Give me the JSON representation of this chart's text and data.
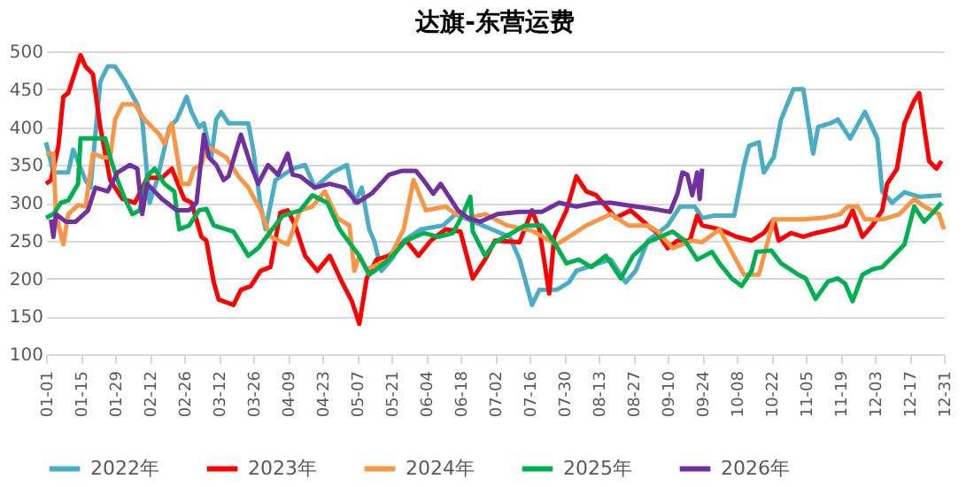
{
  "chart_data": {
    "type": "line",
    "title": "达旗-东营运费",
    "ylim": [
      100,
      500
    ],
    "yticks": [
      100,
      150,
      200,
      250,
      300,
      350,
      400,
      450,
      500
    ],
    "xlim": [
      "--01-01",
      "--12-31"
    ],
    "xticks": [
      {
        "value": "--01-01",
        "label": "01-01"
      },
      {
        "value": "--01-15",
        "label": "01-15"
      },
      {
        "value": "--01-29",
        "label": "01-29"
      },
      {
        "value": "--02-12",
        "label": "02-12"
      },
      {
        "value": "--02-26",
        "label": "02-26"
      },
      {
        "value": "--03-12",
        "label": "03-12"
      },
      {
        "value": "--03-26",
        "label": "03-26"
      },
      {
        "value": "--04-09",
        "label": "04-09"
      },
      {
        "value": "--04-23",
        "label": "04-23"
      },
      {
        "value": "--05-07",
        "label": "05-07"
      },
      {
        "value": "--05-21",
        "label": "05-21"
      },
      {
        "value": "--06-04",
        "label": "06-04"
      },
      {
        "value": "--06-18",
        "label": "06-18"
      },
      {
        "value": "--07-02",
        "label": "07-02"
      },
      {
        "value": "--07-16",
        "label": "07-16"
      },
      {
        "value": "--07-30",
        "label": "07-30"
      },
      {
        "value": "--08-13",
        "label": "08-13"
      },
      {
        "value": "--08-27",
        "label": "08-27"
      },
      {
        "value": "--09-10",
        "label": "09-10"
      },
      {
        "value": "--09-24",
        "label": "09-24"
      },
      {
        "value": "--10-08",
        "label": "10-08"
      },
      {
        "value": "--10-22",
        "label": "10-22"
      },
      {
        "value": "--11-05",
        "label": "11-05"
      },
      {
        "value": "--11-19",
        "label": "11-19"
      },
      {
        "value": "--12-03",
        "label": "12-03"
      },
      {
        "value": "--12-17",
        "label": "12-17"
      },
      {
        "value": "--12-31",
        "label": "12-31"
      }
    ],
    "grid": "y",
    "legend": "bottom",
    "line_style": "solid",
    "marker": "none",
    "series": [
      {
        "name": "2022年",
        "color": "#4bacc6",
        "x": [
          "--01-01",
          "--01-04",
          "--01-10",
          "--01-12",
          "--01-17",
          "--01-19",
          "--01-23",
          "--01-26",
          "--01-29",
          "--02-02",
          "--02-07",
          "--02-09",
          "--02-12",
          "--02-15",
          "--02-20",
          "--02-23",
          "--02-27",
          "--03-01",
          "--03-04",
          "--03-06",
          "--03-09",
          "--03-11",
          "--03-13",
          "--03-16",
          "--03-24",
          "--03-26",
          "--03-29",
          "--03-31",
          "--04-04",
          "--04-11",
          "--04-16",
          "--04-20",
          "--04-27",
          "--05-03",
          "--05-06",
          "--05-09",
          "--05-12",
          "--05-14",
          "--05-17",
          "--05-21",
          "--05-26",
          "--06-02",
          "--06-11",
          "--06-16",
          "--06-27",
          "--07-08",
          "--07-12",
          "--07-17",
          "--07-20",
          "--07-27",
          "--08-01",
          "--08-04",
          "--08-13",
          "--08-18",
          "--08-24",
          "--08-28",
          "--09-02",
          "--09-10",
          "--09-15",
          "--09-21",
          "--09-24",
          "--09-29",
          "--10-07",
          "--10-11",
          "--10-13",
          "--10-17",
          "--10-19",
          "--10-23",
          "--10-26",
          "--10-31",
          "--11-04",
          "--11-08",
          "--11-10",
          "--11-15",
          "--11-18",
          "--11-23",
          "--11-29",
          "--12-04",
          "--12-06",
          "--12-10",
          "--12-15",
          "--12-21",
          "--12-30"
        ],
        "values": [
          380,
          340,
          340,
          370,
          330,
          320,
          460,
          480,
          480,
          460,
          430,
          410,
          300,
          330,
          400,
          410,
          440,
          420,
          400,
          405,
          360,
          410,
          420,
          405,
          405,
          370,
          295,
          265,
          330,
          345,
          350,
          320,
          340,
          350,
          300,
          320,
          265,
          250,
          210,
          225,
          250,
          265,
          270,
          285,
          270,
          255,
          225,
          165,
          185,
          185,
          195,
          210,
          220,
          225,
          195,
          210,
          250,
          270,
          295,
          295,
          280,
          283,
          283,
          350,
          375,
          380,
          340,
          360,
          410,
          450,
          450,
          365,
          400,
          405,
          410,
          385,
          420,
          385,
          315,
          300,
          314,
          308,
          310
        ]
      },
      {
        "name": "2023年",
        "color": "#ff0000",
        "x": [
          "--01-01",
          "--01-03",
          "--01-06",
          "--01-08",
          "--01-10",
          "--01-13",
          "--01-15",
          "--01-17",
          "--01-20",
          "--01-23",
          "--01-27",
          "--02-01",
          "--02-06",
          "--02-11",
          "--02-17",
          "--02-21",
          "--02-26",
          "--03-01",
          "--03-05",
          "--03-07",
          "--03-10",
          "--03-12",
          "--03-18",
          "--03-21",
          "--03-25",
          "--03-29",
          "--04-02",
          "--04-06",
          "--04-09",
          "--04-12",
          "--04-16",
          "--04-21",
          "--04-26",
          "--05-01",
          "--05-05",
          "--05-08",
          "--05-11",
          "--05-15",
          "--05-20",
          "--05-27",
          "--06-01",
          "--06-06",
          "--06-12",
          "--06-18",
          "--06-23",
          "--06-28",
          "--07-02",
          "--07-12",
          "--07-17",
          "--07-20",
          "--07-24",
          "--07-26",
          "--07-31",
          "--08-04",
          "--08-08",
          "--08-12",
          "--08-20",
          "--08-26",
          "--09-02",
          "--09-06",
          "--09-10",
          "--09-14",
          "--09-19",
          "--09-22",
          "--09-24",
          "--10-01",
          "--10-08",
          "--10-14",
          "--10-19",
          "--10-23",
          "--10-25",
          "--10-30",
          "--11-04",
          "--11-09",
          "--11-16",
          "--11-21",
          "--11-24",
          "--11-28",
          "--12-02",
          "--12-06",
          "--12-08",
          "--12-12",
          "--12-15",
          "--12-19",
          "--12-21",
          "--12-25",
          "--12-28",
          "--12-30"
        ],
        "values": [
          325,
          330,
          375,
          440,
          445,
          475,
          495,
          480,
          470,
          400,
          330,
          305,
          300,
          333,
          333,
          345,
          305,
          300,
          255,
          250,
          195,
          172,
          165,
          185,
          190,
          210,
          215,
          287,
          290,
          270,
          230,
          210,
          230,
          195,
          170,
          140,
          200,
          225,
          230,
          250,
          230,
          250,
          265,
          262,
          200,
          225,
          250,
          248,
          290,
          265,
          180,
          255,
          290,
          335,
          315,
          310,
          280,
          290,
          270,
          260,
          240,
          250,
          250,
          283,
          270,
          265,
          255,
          250,
          260,
          278,
          250,
          260,
          255,
          260,
          265,
          270,
          290,
          255,
          270,
          290,
          325,
          345,
          405,
          435,
          445,
          355,
          345,
          355
        ]
      },
      {
        "name": "2024年",
        "color": "#f79646",
        "x": [
          "--01-01",
          "--01-04",
          "--01-05",
          "--01-08",
          "--01-10",
          "--01-14",
          "--01-17",
          "--01-20",
          "--01-24",
          "--01-27",
          "--01-29",
          "--02-01",
          "--02-06",
          "--02-10",
          "--02-16",
          "--02-18",
          "--02-21",
          "--02-25",
          "--02-28",
          "--03-02",
          "--03-05",
          "--03-07",
          "--03-11",
          "--03-15",
          "--03-20",
          "--03-24",
          "--03-29",
          "--04-02",
          "--04-09",
          "--04-14",
          "--04-19",
          "--04-24",
          "--04-29",
          "--05-04",
          "--05-06",
          "--05-08",
          "--05-11",
          "--05-20",
          "--05-26",
          "--05-30",
          "--06-04",
          "--06-12",
          "--06-16",
          "--06-21",
          "--06-28",
          "--07-07",
          "--07-17",
          "--07-27",
          "--08-01",
          "--08-08",
          "--08-18",
          "--08-25",
          "--09-02",
          "--09-06",
          "--09-12",
          "--09-20",
          "--09-24",
          "--10-01",
          "--10-06",
          "--10-11",
          "--10-17",
          "--10-23",
          "--10-30",
          "--11-04",
          "--11-12",
          "--11-19",
          "--11-22",
          "--11-26",
          "--11-29",
          "--12-06",
          "--12-13",
          "--12-19",
          "--12-23",
          "--12-29",
          "--12-31"
        ],
        "values": [
          365,
          365,
          285,
          245,
          285,
          297,
          295,
          365,
          360,
          360,
          410,
          430,
          430,
          410,
          390,
          378,
          405,
          325,
          325,
          345,
          350,
          375,
          368,
          360,
          335,
          320,
          290,
          255,
          245,
          290,
          295,
          315,
          280,
          270,
          210,
          230,
          212,
          225,
          265,
          330,
          290,
          295,
          285,
          280,
          285,
          270,
          263,
          245,
          255,
          270,
          285,
          270,
          270,
          262,
          240,
          250,
          248,
          265,
          235,
          205,
          205,
          278,
          278,
          278,
          280,
          285,
          295,
          295,
          278,
          278,
          285,
          305,
          295,
          285,
          265
        ]
      },
      {
        "name": "2025年",
        "color": "#00b050",
        "x": [
          "--01-01",
          "--01-04",
          "--01-07",
          "--01-10",
          "--01-14",
          "--01-15",
          "--01-25",
          "--01-27",
          "--01-30",
          "--02-02",
          "--02-05",
          "--02-08",
          "--02-11",
          "--02-14",
          "--02-18",
          "--02-22",
          "--02-24",
          "--02-28",
          "--03-04",
          "--03-07",
          "--03-10",
          "--03-18",
          "--03-24",
          "--03-28",
          "--04-02",
          "--04-07",
          "--04-14",
          "--04-19",
          "--04-25",
          "--04-30",
          "--05-05",
          "--05-08",
          "--05-12",
          "--05-15",
          "--05-20",
          "--05-27",
          "--06-03",
          "--06-09",
          "--06-15",
          "--06-19",
          "--06-22",
          "--06-23",
          "--06-28",
          "--07-02",
          "--07-10",
          "--07-14",
          "--07-21",
          "--07-26",
          "--07-31",
          "--08-05",
          "--08-10",
          "--08-16",
          "--08-22",
          "--08-27",
          "--09-02",
          "--09-07",
          "--09-12",
          "--09-17",
          "--09-22",
          "--09-28",
          "--10-01",
          "--10-06",
          "--10-10",
          "--10-14",
          "--10-16",
          "--10-22",
          "--10-26",
          "--11-02",
          "--11-05",
          "--11-09",
          "--11-14",
          "--11-18",
          "--11-21",
          "--11-24",
          "--11-28",
          "--12-02",
          "--12-06",
          "--12-10",
          "--12-15",
          "--12-19",
          "--12-23",
          "--12-26",
          "--12-30"
        ],
        "values": [
          280,
          285,
          300,
          303,
          325,
          385,
          385,
          360,
          330,
          305,
          285,
          290,
          335,
          345,
          325,
          315,
          265,
          270,
          290,
          292,
          270,
          262,
          230,
          240,
          262,
          283,
          290,
          310,
          300,
          265,
          243,
          230,
          205,
          212,
          225,
          250,
          260,
          255,
          260,
          285,
          308,
          262,
          230,
          248,
          262,
          270,
          270,
          248,
          220,
          225,
          215,
          230,
          200,
          230,
          248,
          255,
          262,
          250,
          225,
          235,
          220,
          200,
          190,
          210,
          235,
          237,
          220,
          205,
          200,
          173,
          196,
          200,
          193,
          170,
          205,
          212,
          215,
          228,
          245,
          295,
          275,
          285,
          300
        ]
      },
      {
        "name": "2026年",
        "color": "#7030a0",
        "x": [
          "--01-03",
          "--01-04",
          "--01-05",
          "--01-09",
          "--01-13",
          "--01-18",
          "--01-21",
          "--01-26",
          "--01-30",
          "--02-04",
          "--02-07",
          "--02-09",
          "--02-11",
          "--02-17",
          "--02-23",
          "--02-28",
          "--03-03",
          "--03-06",
          "--03-08",
          "--03-11",
          "--03-14",
          "--03-16",
          "--03-21",
          "--03-25",
          "--03-28",
          "--04-01",
          "--04-05",
          "--04-09",
          "--04-11",
          "--04-14",
          "--04-20",
          "--04-26",
          "--05-02",
          "--05-07",
          "--05-13",
          "--05-20",
          "--05-25",
          "--05-31",
          "--06-03",
          "--06-07",
          "--06-10",
          "--06-14",
          "--06-17",
          "--06-21",
          "--06-26",
          "--07-03",
          "--07-12",
          "--07-21",
          "--07-28",
          "--08-04",
          "--08-12",
          "--08-18",
          "--08-28",
          "--09-04",
          "--09-11",
          "--09-14",
          "--09-16",
          "--09-18",
          "--09-20",
          "--09-22",
          "--09-23",
          "--09-24"
        ],
        "values": [
          278,
          255,
          285,
          275,
          275,
          290,
          320,
          315,
          340,
          350,
          345,
          285,
          325,
          305,
          290,
          290,
          300,
          390,
          360,
          350,
          330,
          335,
          390,
          350,
          325,
          350,
          337,
          365,
          337,
          335,
          320,
          325,
          320,
          300,
          312,
          337,
          342,
          342,
          330,
          312,
          325,
          305,
          290,
          280,
          275,
          285,
          288,
          288,
          300,
          295,
          300,
          300,
          295,
          292,
          288,
          312,
          340,
          337,
          310,
          340,
          305,
          345
        ]
      }
    ]
  }
}
